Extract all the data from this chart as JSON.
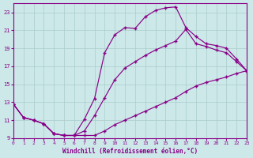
{
  "xlabel": "Windchill (Refroidissement éolien,°C)",
  "bg_color": "#cce8e8",
  "line_color": "#880088",
  "grid_color": "#aacccc",
  "xlim": [
    0,
    23
  ],
  "ylim": [
    9,
    24
  ],
  "xticks": [
    0,
    1,
    2,
    3,
    4,
    5,
    6,
    7,
    8,
    9,
    10,
    11,
    12,
    13,
    14,
    15,
    16,
    17,
    18,
    19,
    20,
    21,
    22,
    23
  ],
  "yticks": [
    9,
    11,
    13,
    15,
    17,
    19,
    21,
    23
  ],
  "curve1_x": [
    0,
    1,
    2,
    3,
    4,
    5,
    6,
    7,
    8,
    9,
    10,
    11,
    12,
    13,
    14,
    15,
    16,
    17,
    18,
    19,
    20,
    21,
    22,
    23
  ],
  "curve1_y": [
    12.8,
    11.3,
    11.0,
    10.6,
    9.5,
    9.3,
    9.3,
    11.1,
    13.4,
    18.5,
    20.5,
    21.3,
    21.2,
    22.5,
    23.2,
    23.5,
    23.6,
    21.3,
    20.3,
    19.5,
    19.3,
    19.0,
    17.8,
    16.5
  ],
  "curve2_x": [
    0,
    1,
    2,
    3,
    4,
    5,
    6,
    7,
    8,
    9,
    10,
    11,
    12,
    13,
    14,
    15,
    16,
    17,
    18,
    19,
    20,
    21,
    22,
    23
  ],
  "curve2_y": [
    12.8,
    11.3,
    11.0,
    10.6,
    9.5,
    9.3,
    9.3,
    9.8,
    11.5,
    13.5,
    15.5,
    16.8,
    17.5,
    18.2,
    18.8,
    19.3,
    19.8,
    21.1,
    19.5,
    19.2,
    18.8,
    18.5,
    17.5,
    16.5
  ],
  "curve3_x": [
    0,
    1,
    2,
    3,
    4,
    5,
    6,
    7,
    8,
    9,
    10,
    11,
    12,
    13,
    14,
    15,
    16,
    17,
    18,
    19,
    20,
    21,
    22,
    23
  ],
  "curve3_y": [
    12.8,
    11.3,
    11.0,
    10.6,
    9.5,
    9.3,
    9.3,
    9.3,
    9.3,
    9.8,
    10.5,
    11.0,
    11.5,
    12.0,
    12.5,
    13.0,
    13.5,
    14.2,
    14.8,
    15.2,
    15.5,
    15.8,
    16.2,
    16.5
  ]
}
